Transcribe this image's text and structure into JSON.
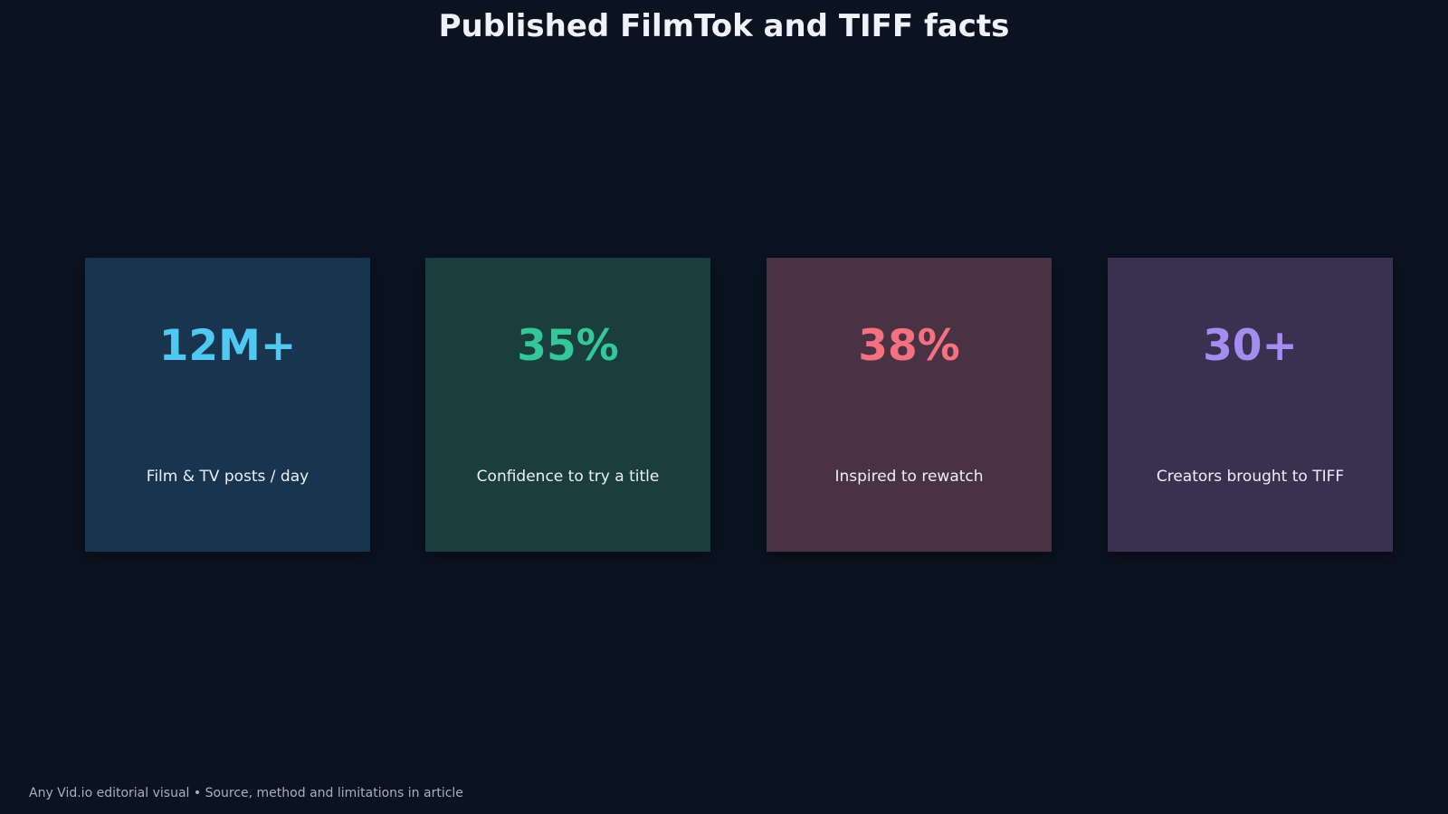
{
  "title": "Published FilmTok and TIFF facts",
  "cards": [
    {
      "value": "12M+",
      "label": "Film & TV posts / day",
      "value_color": "#4fc8f2",
      "bg_color": "#18344f"
    },
    {
      "value": "35%",
      "label": "Confidence to try a title",
      "value_color": "#34c79a",
      "bg_color": "#1a3d3d"
    },
    {
      "value": "38%",
      "label": "Inspired to rewatch",
      "value_color": "#f5717f",
      "bg_color": "#4a3245"
    },
    {
      "value": "30+",
      "label": "Creators brought to TIFF",
      "value_color": "#a48df0",
      "bg_color": "#3a3150"
    }
  ],
  "footer": "Any Vid.io editorial visual • Source, method and limitations in article"
}
